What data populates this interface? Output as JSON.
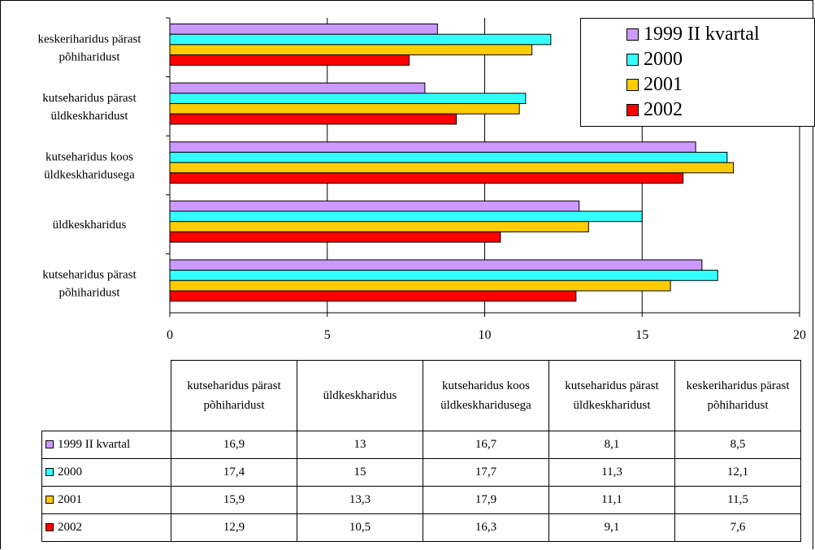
{
  "chart_data": {
    "type": "bar",
    "orientation": "horizontal",
    "categories": [
      [
        "keskeriharidus pärast",
        "põhiharidust"
      ],
      [
        "kutseharidus pärast",
        "üldkeskharidust"
      ],
      [
        "kutseharidus koos",
        "üldkeskharidusega"
      ],
      [
        "üldkeskharidus"
      ],
      [
        "kutseharidus pärast",
        "põhiharidust"
      ]
    ],
    "series": [
      {
        "name": "1999 II kvartal",
        "color": "#cc99ff",
        "values": [
          8.5,
          8.1,
          16.7,
          13,
          16.9
        ]
      },
      {
        "name": "2000",
        "color": "#33ffff",
        "values": [
          12.1,
          11.3,
          17.7,
          15,
          17.4
        ]
      },
      {
        "name": "2001",
        "color": "#ffcc00",
        "values": [
          11.5,
          11.1,
          17.9,
          13.3,
          15.9
        ]
      },
      {
        "name": "2002",
        "color": "#ff0000",
        "values": [
          7.6,
          9.1,
          16.3,
          10.5,
          12.9
        ]
      }
    ],
    "xlim": [
      0,
      20
    ],
    "xticks": [
      "0",
      "5",
      "10",
      "15",
      "20"
    ],
    "grid": "vertical",
    "legend": "top-right"
  },
  "legend": [
    {
      "label": "1999 II kvartal",
      "color": "#cc99ff"
    },
    {
      "label": "2000",
      "color": "#33ffff"
    },
    {
      "label": "2001",
      "color": "#ffcc00"
    },
    {
      "label": "2002",
      "color": "#ff0000"
    }
  ],
  "table": {
    "headers": [
      "kutseharidus pärast põhiharidust",
      "üldkeskharidus",
      "kutseharidus koos üldkeskharidusega",
      "kutseharidus pärast üldkeskharidust",
      "keskeriharidus pärast põhiharidust"
    ],
    "rows": [
      {
        "label": "1999 II kvartal",
        "color": "#cc99ff",
        "cells": [
          "16,9",
          "13",
          "16,7",
          "8,1",
          "8,5"
        ]
      },
      {
        "label": "2000",
        "color": "#33ffff",
        "cells": [
          "17,4",
          "15",
          "17,7",
          "11,3",
          "12,1"
        ]
      },
      {
        "label": "2001",
        "color": "#ffcc00",
        "cells": [
          "15,9",
          "13,3",
          "17,9",
          "11,1",
          "11,5"
        ]
      },
      {
        "label": "2002",
        "color": "#ff0000",
        "cells": [
          "12,9",
          "10,5",
          "16,3",
          "9,1",
          "7,6"
        ]
      }
    ]
  }
}
